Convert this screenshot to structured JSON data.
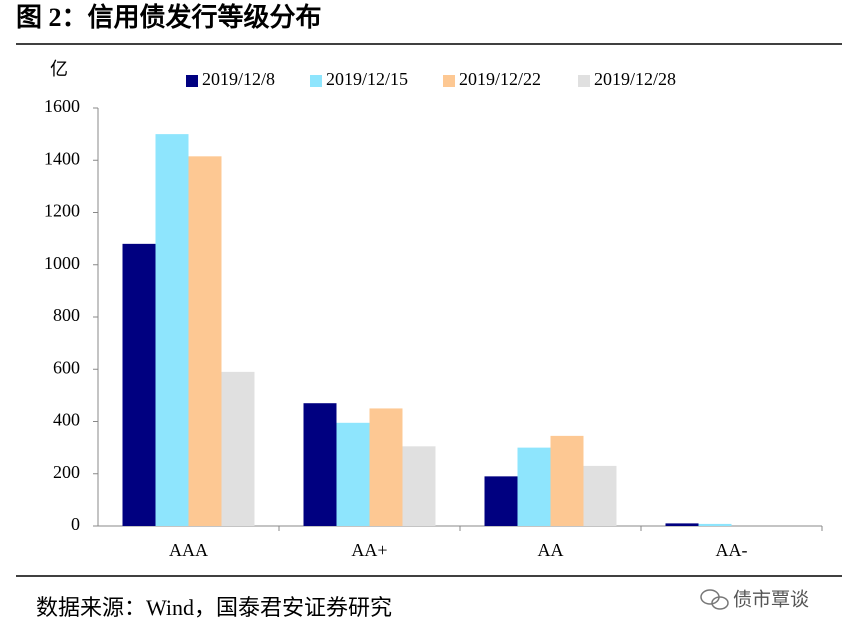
{
  "title": "图 2：信用债发行等级分布",
  "chart_data": {
    "type": "bar",
    "y_unit": "亿",
    "categories": [
      "AAA",
      "AA+",
      "AA",
      "AA-"
    ],
    "series": [
      {
        "name": "2019/12/8",
        "color": "#000080",
        "values": [
          1080,
          470,
          190,
          10
        ]
      },
      {
        "name": "2019/12/15",
        "color": "#8ee5fd",
        "values": [
          1500,
          395,
          300,
          8
        ]
      },
      {
        "name": "2019/12/22",
        "color": "#fdc893",
        "values": [
          1415,
          450,
          345,
          0
        ]
      },
      {
        "name": "2019/12/28",
        "color": "#e0e0e0",
        "values": [
          590,
          305,
          230,
          0
        ]
      }
    ],
    "ylim": [
      0,
      1600
    ],
    "yticks": [
      0,
      200,
      400,
      600,
      800,
      1000,
      1200,
      1400,
      1600
    ],
    "grid": false,
    "legend": "top"
  },
  "source": "数据来源：Wind，国泰君安证券研究",
  "watermark": "债市覃谈"
}
